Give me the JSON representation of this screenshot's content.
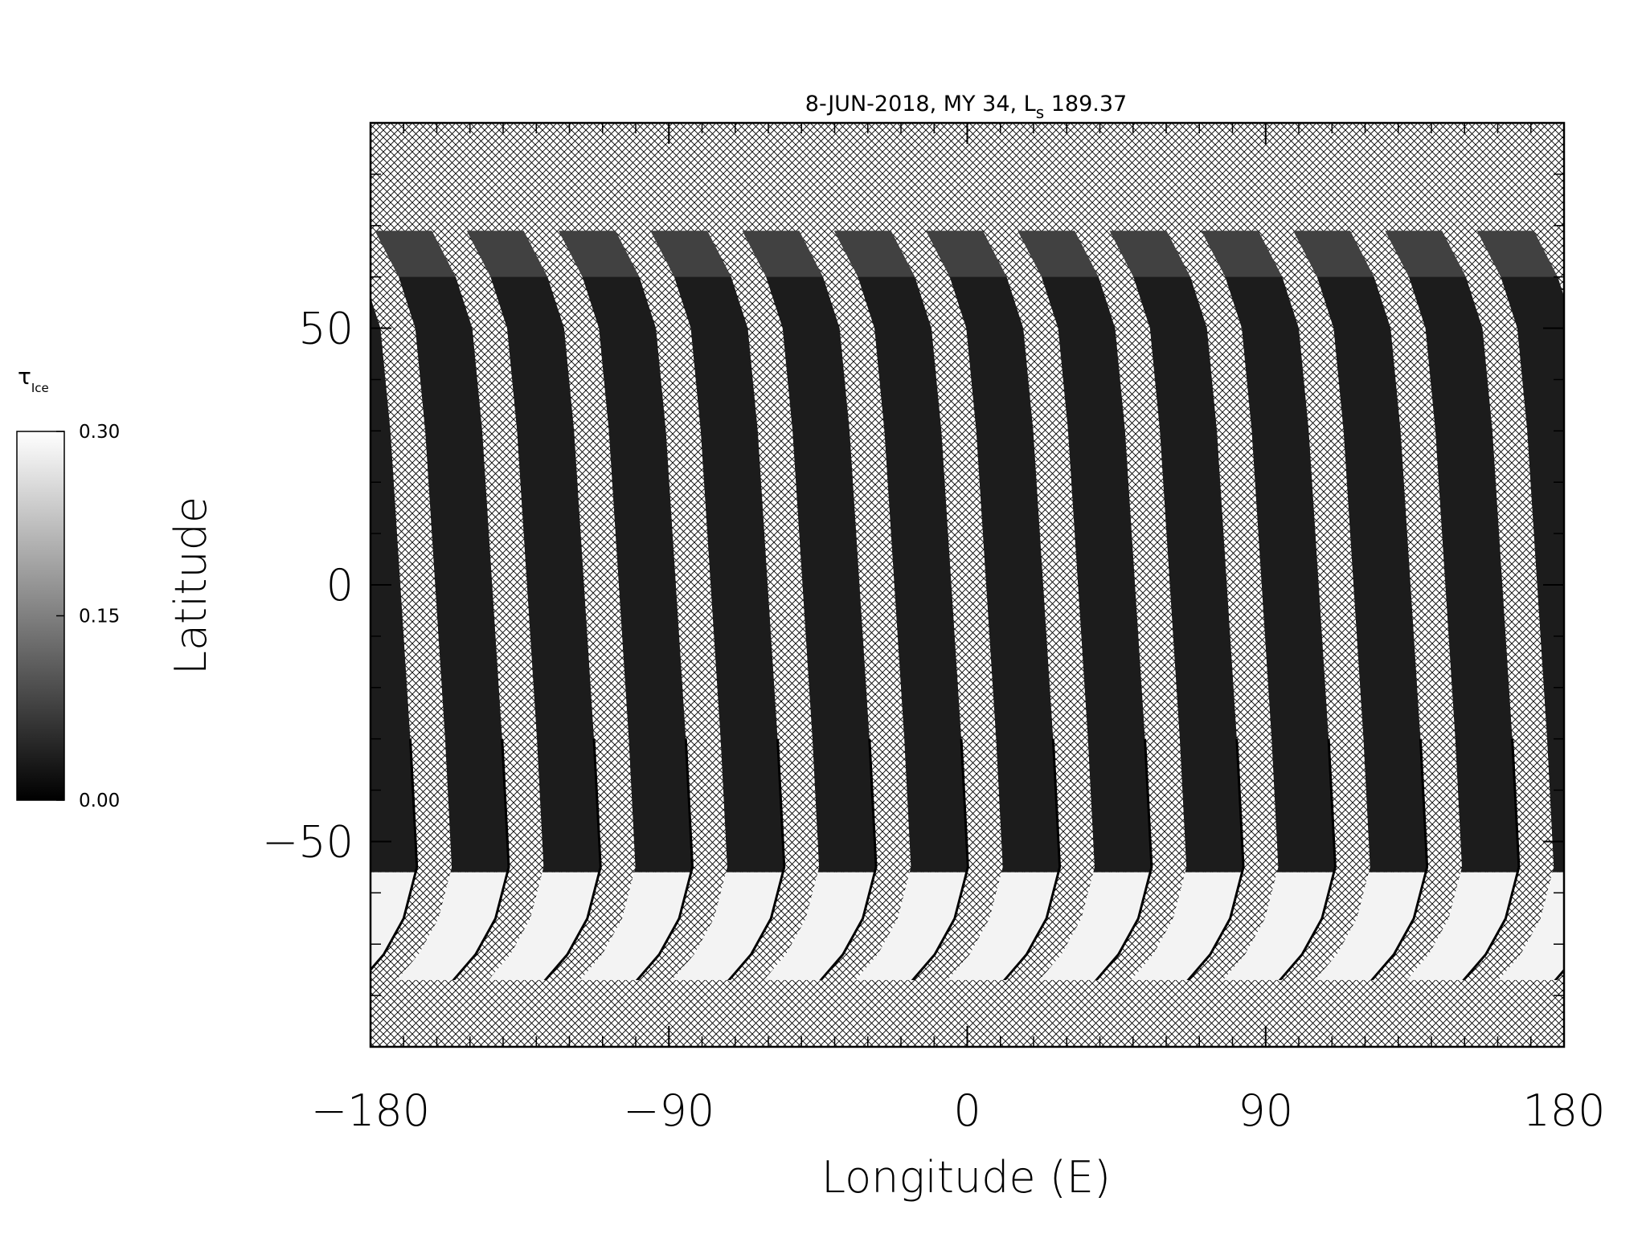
{
  "chart_data": {
    "type": "map",
    "title": {
      "before": "8-JUN-2018, MY 34,  L",
      "subscript": "s",
      "after": " 189.37"
    },
    "x_label": "Longitude (E)",
    "y_label": "Latitude",
    "xlim": [
      -180,
      180
    ],
    "ylim": [
      -90,
      90
    ],
    "xticks": [
      {
        "value": -180,
        "label": "−180"
      },
      {
        "value": -90,
        "label": "−90"
      },
      0,
      90,
      180
    ],
    "yticks": [
      {
        "value": -50,
        "label": "−50"
      },
      0,
      50
    ],
    "minor_tick_step": 10,
    "colorbar": {
      "label": "τ",
      "label_subscript": "Ice",
      "lim": [
        0,
        0.3
      ],
      "colors": [
        "#000000",
        "#ffffff"
      ],
      "ticks": [
        {
          "value": 0,
          "label": "0.00"
        },
        {
          "value": 0.15,
          "label": "0.15"
        },
        {
          "value": 0.3,
          "label": "0.30"
        }
      ]
    }
  }
}
